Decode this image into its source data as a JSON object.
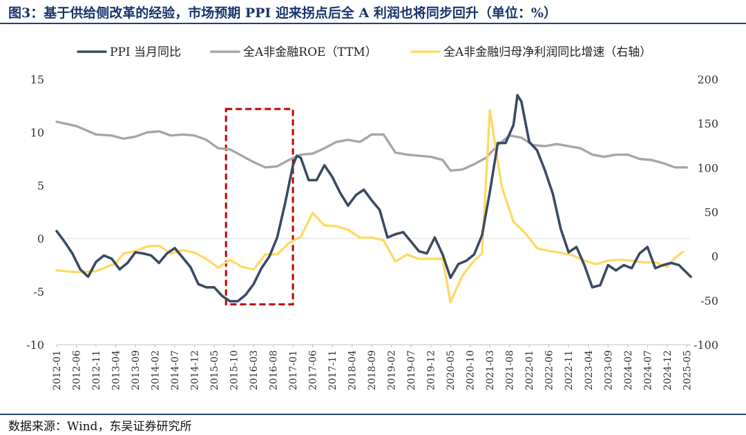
{
  "title": "图3：基于供给侧改革的经验，市场预期 PPI 迎来拐点后全 A 利润也将同步回升（单位：%）",
  "source": "数据来源：Wind，东吴证券研究所",
  "colors": {
    "ppi": "#3a4a63",
    "roe": "#a6a6a6",
    "growth": "#ffd966",
    "highlight": "#c00000",
    "title": "#17346b"
  },
  "chart_data": {
    "type": "line",
    "x": [
      "2012-01",
      "2012-06",
      "2012-11",
      "2013-04",
      "2013-09",
      "2014-02",
      "2014-07",
      "2014-12",
      "2015-05",
      "2015-10",
      "2016-03",
      "2016-08",
      "2017-01",
      "2017-06",
      "2017-11",
      "2018-04",
      "2018-09",
      "2019-02",
      "2019-07",
      "2019-12",
      "2020-05",
      "2020-10",
      "2021-03",
      "2021-08",
      "2022-01",
      "2022-06",
      "2022-11",
      "2023-04",
      "2023-09",
      "2024-02",
      "2024-07",
      "2024-12",
      "2025-05"
    ],
    "x_range": [
      "2012-01",
      "2025-06"
    ],
    "left_axis": {
      "ylim": [
        -10,
        15
      ],
      "ticks": [
        "15",
        "10",
        "5",
        "0",
        "-5",
        "-10"
      ],
      "tick_values": [
        15,
        10,
        5,
        0,
        -5,
        -10
      ]
    },
    "right_axis": {
      "ylim": [
        -100,
        200
      ],
      "ticks": [
        "200",
        "150",
        "100",
        "50",
        "0",
        "-50",
        "-100"
      ],
      "tick_values": [
        200,
        150,
        100,
        50,
        0,
        -50,
        -100
      ],
      "label": "右轴"
    },
    "highlight_box": {
      "x_start": "2015-08",
      "x_end": "2017-01",
      "y_low": -6.2,
      "y_high": 12.2,
      "style": "dashed"
    },
    "series": [
      {
        "name": "PPI 当月同比",
        "key": "ppi",
        "axis": "left",
        "points": [
          [
            "2012-01",
            0.7
          ],
          [
            "2012-03",
            -0.3
          ],
          [
            "2012-05",
            -1.4
          ],
          [
            "2012-07",
            -2.9
          ],
          [
            "2012-09",
            -3.6
          ],
          [
            "2012-11",
            -2.2
          ],
          [
            "2013-01",
            -1.6
          ],
          [
            "2013-03",
            -1.9
          ],
          [
            "2013-05",
            -2.9
          ],
          [
            "2013-07",
            -2.3
          ],
          [
            "2013-09",
            -1.3
          ],
          [
            "2013-11",
            -1.4
          ],
          [
            "2014-01",
            -1.6
          ],
          [
            "2014-03",
            -2.3
          ],
          [
            "2014-05",
            -1.4
          ],
          [
            "2014-07",
            -0.9
          ],
          [
            "2014-09",
            -1.8
          ],
          [
            "2014-11",
            -2.7
          ],
          [
            "2015-01",
            -4.3
          ],
          [
            "2015-03",
            -4.6
          ],
          [
            "2015-05",
            -4.6
          ],
          [
            "2015-07",
            -5.4
          ],
          [
            "2015-09",
            -5.9
          ],
          [
            "2015-11",
            -5.9
          ],
          [
            "2016-01",
            -5.3
          ],
          [
            "2016-03",
            -4.3
          ],
          [
            "2016-05",
            -2.8
          ],
          [
            "2016-07",
            -1.7
          ],
          [
            "2016-09",
            0.1
          ],
          [
            "2016-11",
            3.3
          ],
          [
            "2017-01",
            6.9
          ],
          [
            "2017-02",
            7.8
          ],
          [
            "2017-03",
            7.6
          ],
          [
            "2017-05",
            5.5
          ],
          [
            "2017-07",
            5.5
          ],
          [
            "2017-09",
            6.9
          ],
          [
            "2017-11",
            5.8
          ],
          [
            "2018-01",
            4.3
          ],
          [
            "2018-03",
            3.1
          ],
          [
            "2018-05",
            4.1
          ],
          [
            "2018-07",
            4.6
          ],
          [
            "2018-09",
            3.6
          ],
          [
            "2018-11",
            2.7
          ],
          [
            "2019-01",
            0.1
          ],
          [
            "2019-03",
            0.4
          ],
          [
            "2019-05",
            0.6
          ],
          [
            "2019-07",
            -0.3
          ],
          [
            "2019-09",
            -1.2
          ],
          [
            "2019-11",
            -1.4
          ],
          [
            "2020-01",
            0.1
          ],
          [
            "2020-03",
            -1.5
          ],
          [
            "2020-05",
            -3.7
          ],
          [
            "2020-07",
            -2.4
          ],
          [
            "2020-09",
            -2.1
          ],
          [
            "2020-11",
            -1.5
          ],
          [
            "2021-01",
            0.3
          ],
          [
            "2021-03",
            4.4
          ],
          [
            "2021-05",
            9.0
          ],
          [
            "2021-07",
            9.0
          ],
          [
            "2021-09",
            10.7
          ],
          [
            "2021-10",
            13.5
          ],
          [
            "2021-11",
            12.9
          ],
          [
            "2022-01",
            9.1
          ],
          [
            "2022-03",
            8.3
          ],
          [
            "2022-05",
            6.4
          ],
          [
            "2022-07",
            4.2
          ],
          [
            "2022-09",
            0.9
          ],
          [
            "2022-11",
            -1.3
          ],
          [
            "2023-01",
            -0.8
          ],
          [
            "2023-03",
            -2.5
          ],
          [
            "2023-05",
            -4.6
          ],
          [
            "2023-07",
            -4.4
          ],
          [
            "2023-09",
            -2.5
          ],
          [
            "2023-11",
            -3.0
          ],
          [
            "2024-01",
            -2.5
          ],
          [
            "2024-03",
            -2.8
          ],
          [
            "2024-05",
            -1.4
          ],
          [
            "2024-07",
            -0.8
          ],
          [
            "2024-09",
            -2.8
          ],
          [
            "2024-11",
            -2.5
          ],
          [
            "2025-01",
            -2.3
          ],
          [
            "2025-03",
            -2.5
          ],
          [
            "2025-06",
            -3.6
          ]
        ]
      },
      {
        "name": "全A非金融ROE（TTM）",
        "key": "roe",
        "axis": "left",
        "points": [
          [
            "2012-01",
            11.0
          ],
          [
            "2012-06",
            10.6
          ],
          [
            "2012-11",
            9.8
          ],
          [
            "2013-03",
            9.7
          ],
          [
            "2013-06",
            9.4
          ],
          [
            "2013-09",
            9.6
          ],
          [
            "2013-12",
            10.0
          ],
          [
            "2014-03",
            10.1
          ],
          [
            "2014-06",
            9.7
          ],
          [
            "2014-09",
            9.8
          ],
          [
            "2014-12",
            9.7
          ],
          [
            "2015-03",
            9.3
          ],
          [
            "2015-06",
            8.5
          ],
          [
            "2015-09",
            8.4
          ],
          [
            "2015-12",
            7.8
          ],
          [
            "2016-03",
            7.2
          ],
          [
            "2016-06",
            6.7
          ],
          [
            "2016-09",
            6.8
          ],
          [
            "2016-12",
            7.4
          ],
          [
            "2017-03",
            7.9
          ],
          [
            "2017-06",
            8.0
          ],
          [
            "2017-09",
            8.5
          ],
          [
            "2017-12",
            9.1
          ],
          [
            "2018-03",
            9.3
          ],
          [
            "2018-06",
            9.1
          ],
          [
            "2018-09",
            9.8
          ],
          [
            "2018-12",
            9.8
          ],
          [
            "2019-03",
            8.1
          ],
          [
            "2019-06",
            7.9
          ],
          [
            "2019-09",
            7.8
          ],
          [
            "2019-12",
            7.7
          ],
          [
            "2020-03",
            7.4
          ],
          [
            "2020-05",
            6.4
          ],
          [
            "2020-08",
            6.5
          ],
          [
            "2020-11",
            7.0
          ],
          [
            "2021-02",
            7.6
          ],
          [
            "2021-05",
            8.8
          ],
          [
            "2021-08",
            9.7
          ],
          [
            "2021-11",
            9.5
          ],
          [
            "2022-02",
            8.8
          ],
          [
            "2022-05",
            8.7
          ],
          [
            "2022-08",
            8.9
          ],
          [
            "2022-11",
            8.7
          ],
          [
            "2023-02",
            8.5
          ],
          [
            "2023-05",
            7.9
          ],
          [
            "2023-08",
            7.7
          ],
          [
            "2023-11",
            7.9
          ],
          [
            "2024-02",
            7.9
          ],
          [
            "2024-05",
            7.5
          ],
          [
            "2024-08",
            7.4
          ],
          [
            "2024-11",
            7.1
          ],
          [
            "2025-02",
            6.7
          ],
          [
            "2025-05",
            6.7
          ]
        ]
      },
      {
        "name": "全A非金融归母净利润同比增速（右轴）",
        "key": "growth",
        "axis": "right",
        "points": [
          [
            "2012-01",
            -16
          ],
          [
            "2012-06",
            -18
          ],
          [
            "2012-11",
            -17
          ],
          [
            "2013-04",
            -8
          ],
          [
            "2013-06",
            3
          ],
          [
            "2013-09",
            6
          ],
          [
            "2013-12",
            11
          ],
          [
            "2014-03",
            12
          ],
          [
            "2014-06",
            3
          ],
          [
            "2014-09",
            7
          ],
          [
            "2014-12",
            4
          ],
          [
            "2015-03",
            -3
          ],
          [
            "2015-06",
            -13
          ],
          [
            "2015-09",
            -4
          ],
          [
            "2015-12",
            -12
          ],
          [
            "2016-03",
            -15
          ],
          [
            "2016-06",
            2
          ],
          [
            "2016-09",
            2
          ],
          [
            "2016-12",
            15
          ],
          [
            "2017-03",
            22
          ],
          [
            "2017-06",
            49
          ],
          [
            "2017-09",
            35
          ],
          [
            "2017-12",
            34
          ],
          [
            "2018-03",
            30
          ],
          [
            "2018-06",
            21
          ],
          [
            "2018-09",
            21
          ],
          [
            "2018-12",
            18
          ],
          [
            "2019-03",
            -6
          ],
          [
            "2019-06",
            2
          ],
          [
            "2019-09",
            -3
          ],
          [
            "2019-12",
            -3
          ],
          [
            "2020-03",
            -3
          ],
          [
            "2020-05",
            -52
          ],
          [
            "2020-08",
            -22
          ],
          [
            "2020-11",
            -5
          ],
          [
            "2021-01",
            3
          ],
          [
            "2021-03",
            165
          ],
          [
            "2021-06",
            79
          ],
          [
            "2021-09",
            39
          ],
          [
            "2021-12",
            26
          ],
          [
            "2022-03",
            9
          ],
          [
            "2022-06",
            6
          ],
          [
            "2022-09",
            4
          ],
          [
            "2022-12",
            1
          ],
          [
            "2023-03",
            -5
          ],
          [
            "2023-06",
            -9
          ],
          [
            "2023-09",
            -5
          ],
          [
            "2023-12",
            -4
          ],
          [
            "2024-03",
            -5
          ],
          [
            "2024-06",
            -7
          ],
          [
            "2024-09",
            -7
          ],
          [
            "2024-12",
            -12
          ],
          [
            "2025-02",
            -2
          ],
          [
            "2025-04",
            5
          ]
        ]
      }
    ]
  }
}
